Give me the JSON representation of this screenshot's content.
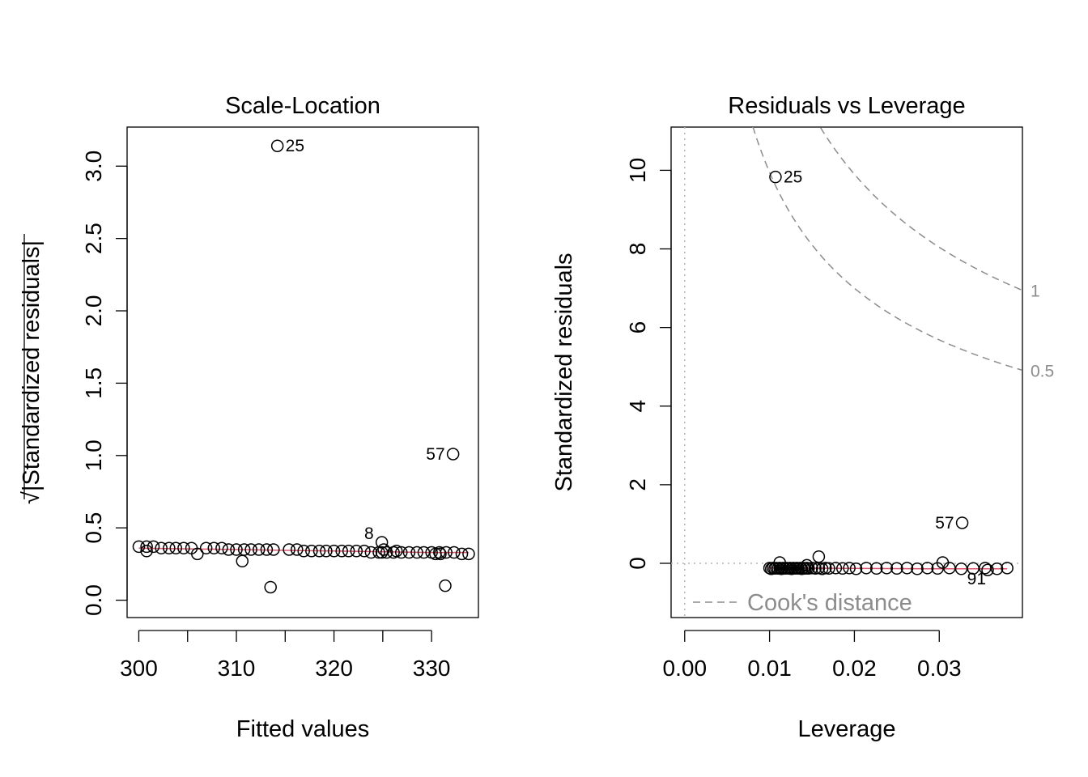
{
  "chart_data": [
    {
      "type": "scatter",
      "title": "Scale-Location",
      "xlabel": "Fitted values",
      "ylabel": "√|Standardized residuals|",
      "ylabel_root": "√",
      "ylabel_text": "|Standardized residuals|",
      "xlim": [
        298.8,
        334.8
      ],
      "ylim": [
        -0.12,
        3.27
      ],
      "xticks": [
        300,
        305,
        310,
        315,
        320,
        325,
        330
      ],
      "xtick_labels": [
        "300",
        "",
        "310",
        "",
        "320",
        "",
        "330"
      ],
      "yticks": [
        0.0,
        0.5,
        1.0,
        1.5,
        2.0,
        2.5,
        3.0
      ],
      "ytick_labels": [
        "0.0",
        "0.5",
        "1.0",
        "1.5",
        "2.0",
        "2.5",
        "3.0"
      ],
      "grid": false,
      "points": {
        "x": [
          300.0,
          300.8,
          301.5,
          302.3,
          303.1,
          303.8,
          304.6,
          305.4,
          306.9,
          307.7,
          308.5,
          309.2,
          310.0,
          310.8,
          311.5,
          312.3,
          313.1,
          313.8,
          315.4,
          316.2,
          316.9,
          317.7,
          318.5,
          319.2,
          320.0,
          320.8,
          321.5,
          322.3,
          323.1,
          323.8,
          324.6,
          325.4,
          326.1,
          326.9,
          327.7,
          328.5,
          329.2,
          330.0,
          330.8,
          331.5,
          332.3,
          333.1,
          333.8,
          300.8,
          306.0,
          310.6,
          324.9,
          325.1,
          326.4,
          330.4,
          330.9
        ],
        "y": [
          0.37,
          0.37,
          0.37,
          0.36,
          0.36,
          0.36,
          0.36,
          0.36,
          0.36,
          0.36,
          0.36,
          0.35,
          0.35,
          0.35,
          0.35,
          0.35,
          0.35,
          0.35,
          0.35,
          0.35,
          0.34,
          0.34,
          0.34,
          0.34,
          0.34,
          0.34,
          0.34,
          0.34,
          0.34,
          0.33,
          0.33,
          0.33,
          0.33,
          0.33,
          0.33,
          0.33,
          0.33,
          0.33,
          0.33,
          0.33,
          0.33,
          0.32,
          0.32,
          0.34,
          0.32,
          0.27,
          0.33,
          0.35,
          0.34,
          0.32,
          0.32
        ]
      },
      "labeled_points": [
        {
          "label": "25",
          "x": 314.2,
          "y": 3.14,
          "side": "right"
        },
        {
          "label": "57",
          "x": 332.2,
          "y": 1.01,
          "side": "left"
        },
        {
          "label": "8",
          "x": 324.9,
          "y": 0.4,
          "side": "above-left"
        }
      ],
      "extra_points": {
        "x": [
          313.5,
          331.4
        ],
        "y": [
          0.09,
          0.1
        ]
      },
      "smooth_line": {
        "x": [
          300.0,
          310.0,
          320.0,
          330.0,
          333.8
        ],
        "y": [
          0.36,
          0.35,
          0.34,
          0.33,
          0.33
        ]
      },
      "smooth_color": "#df536b"
    },
    {
      "type": "scatter",
      "title": "Residuals vs Leverage",
      "xlabel": "Leverage",
      "ylabel": "Standardized residuals",
      "xlim": [
        -0.0016,
        0.0398
      ],
      "ylim": [
        -1.38,
        11.1
      ],
      "xticks": [
        0.0,
        0.01,
        0.02,
        0.03
      ],
      "xtick_labels": [
        "0.00",
        "0.01",
        "0.02",
        "0.03"
      ],
      "yticks": [
        0,
        2,
        4,
        6,
        8,
        10
      ],
      "ytick_labels": [
        "0",
        "2",
        "4",
        "6",
        "8",
        "10"
      ],
      "grid": false,
      "points": {
        "x": [
          0.01,
          0.0102,
          0.0104,
          0.0106,
          0.0108,
          0.011,
          0.0112,
          0.0114,
          0.0116,
          0.0118,
          0.012,
          0.0122,
          0.0124,
          0.0126,
          0.0128,
          0.013,
          0.0132,
          0.0134,
          0.0136,
          0.0138,
          0.014,
          0.0142,
          0.0144,
          0.0146,
          0.015,
          0.0154,
          0.0158,
          0.0162,
          0.0166,
          0.017,
          0.0178,
          0.0186,
          0.0194,
          0.0202,
          0.0214,
          0.0226,
          0.0238,
          0.025,
          0.0262,
          0.0274,
          0.0286,
          0.0298,
          0.0312,
          0.0326,
          0.034,
          0.0354,
          0.0368,
          0.038,
          0.0112,
          0.0158,
          0.0304,
          0.0144
        ],
        "y": [
          -0.12,
          -0.14,
          -0.12,
          -0.13,
          -0.12,
          -0.13,
          -0.12,
          -0.14,
          -0.12,
          -0.13,
          -0.12,
          -0.13,
          -0.12,
          -0.14,
          -0.12,
          -0.13,
          -0.12,
          -0.13,
          -0.12,
          -0.14,
          -0.12,
          -0.13,
          -0.12,
          -0.13,
          -0.12,
          -0.13,
          -0.12,
          -0.14,
          -0.12,
          -0.13,
          -0.12,
          -0.13,
          -0.12,
          -0.14,
          -0.12,
          -0.13,
          -0.12,
          -0.13,
          -0.12,
          -0.14,
          -0.12,
          -0.13,
          -0.12,
          -0.14,
          -0.13,
          -0.12,
          -0.14,
          -0.12,
          0.02,
          0.17,
          0.02,
          -0.05
        ]
      },
      "labeled_points": [
        {
          "label": "25",
          "x": 0.0107,
          "y": 9.83,
          "side": "right"
        },
        {
          "label": "57",
          "x": 0.0327,
          "y": 1.03,
          "side": "left"
        },
        {
          "label": "91",
          "x": 0.0357,
          "y": -0.17,
          "side": "below-left"
        }
      ],
      "smooth_line": {
        "x": [
          0.01,
          0.02,
          0.03,
          0.038
        ],
        "y": [
          -0.12,
          -0.13,
          -0.14,
          -0.14
        ]
      },
      "smooth_color": "#df536b",
      "cooks_distance": {
        "levels": [
          0.5,
          1
        ],
        "labels": [
          "0.5",
          "1"
        ],
        "n_params": 2,
        "color": "#8c8c8c"
      },
      "legend": {
        "text": "Cook's distance",
        "position": "bottom-left"
      }
    }
  ]
}
